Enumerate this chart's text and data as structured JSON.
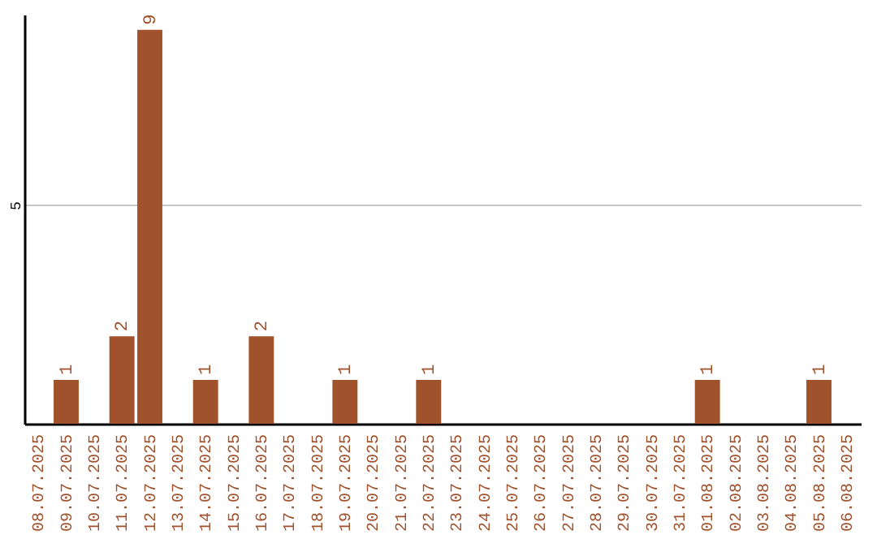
{
  "chart_data": {
    "type": "bar",
    "categories": [
      "08.07.2025",
      "09.07.2025",
      "10.07.2025",
      "11.07.2025",
      "12.07.2025",
      "13.07.2025",
      "14.07.2025",
      "15.07.2025",
      "16.07.2025",
      "17.07.2025",
      "18.07.2025",
      "19.07.2025",
      "20.07.2025",
      "21.07.2025",
      "22.07.2025",
      "23.07.2025",
      "24.07.2025",
      "25.07.2025",
      "26.07.2025",
      "27.07.2025",
      "28.07.2025",
      "29.07.2025",
      "30.07.2025",
      "31.07.2025",
      "01.08.2025",
      "02.08.2025",
      "03.08.2025",
      "04.08.2025",
      "05.08.2025",
      "06.08.2025"
    ],
    "values": [
      0,
      1,
      0,
      2,
      9,
      0,
      1,
      0,
      2,
      0,
      0,
      1,
      0,
      0,
      1,
      0,
      0,
      0,
      0,
      0,
      0,
      0,
      0,
      0,
      1,
      0,
      0,
      0,
      1,
      0
    ],
    "value_labels": [
      null,
      "1",
      null,
      "2",
      "9",
      null,
      "1",
      null,
      "2",
      null,
      null,
      "1",
      null,
      null,
      "1",
      null,
      null,
      null,
      null,
      null,
      null,
      null,
      null,
      null,
      "1",
      null,
      null,
      null,
      "1",
      null
    ],
    "color": "#a0522d",
    "ylim": [
      0,
      9.35
    ],
    "yticks": [
      5
    ],
    "grid": "y"
  }
}
